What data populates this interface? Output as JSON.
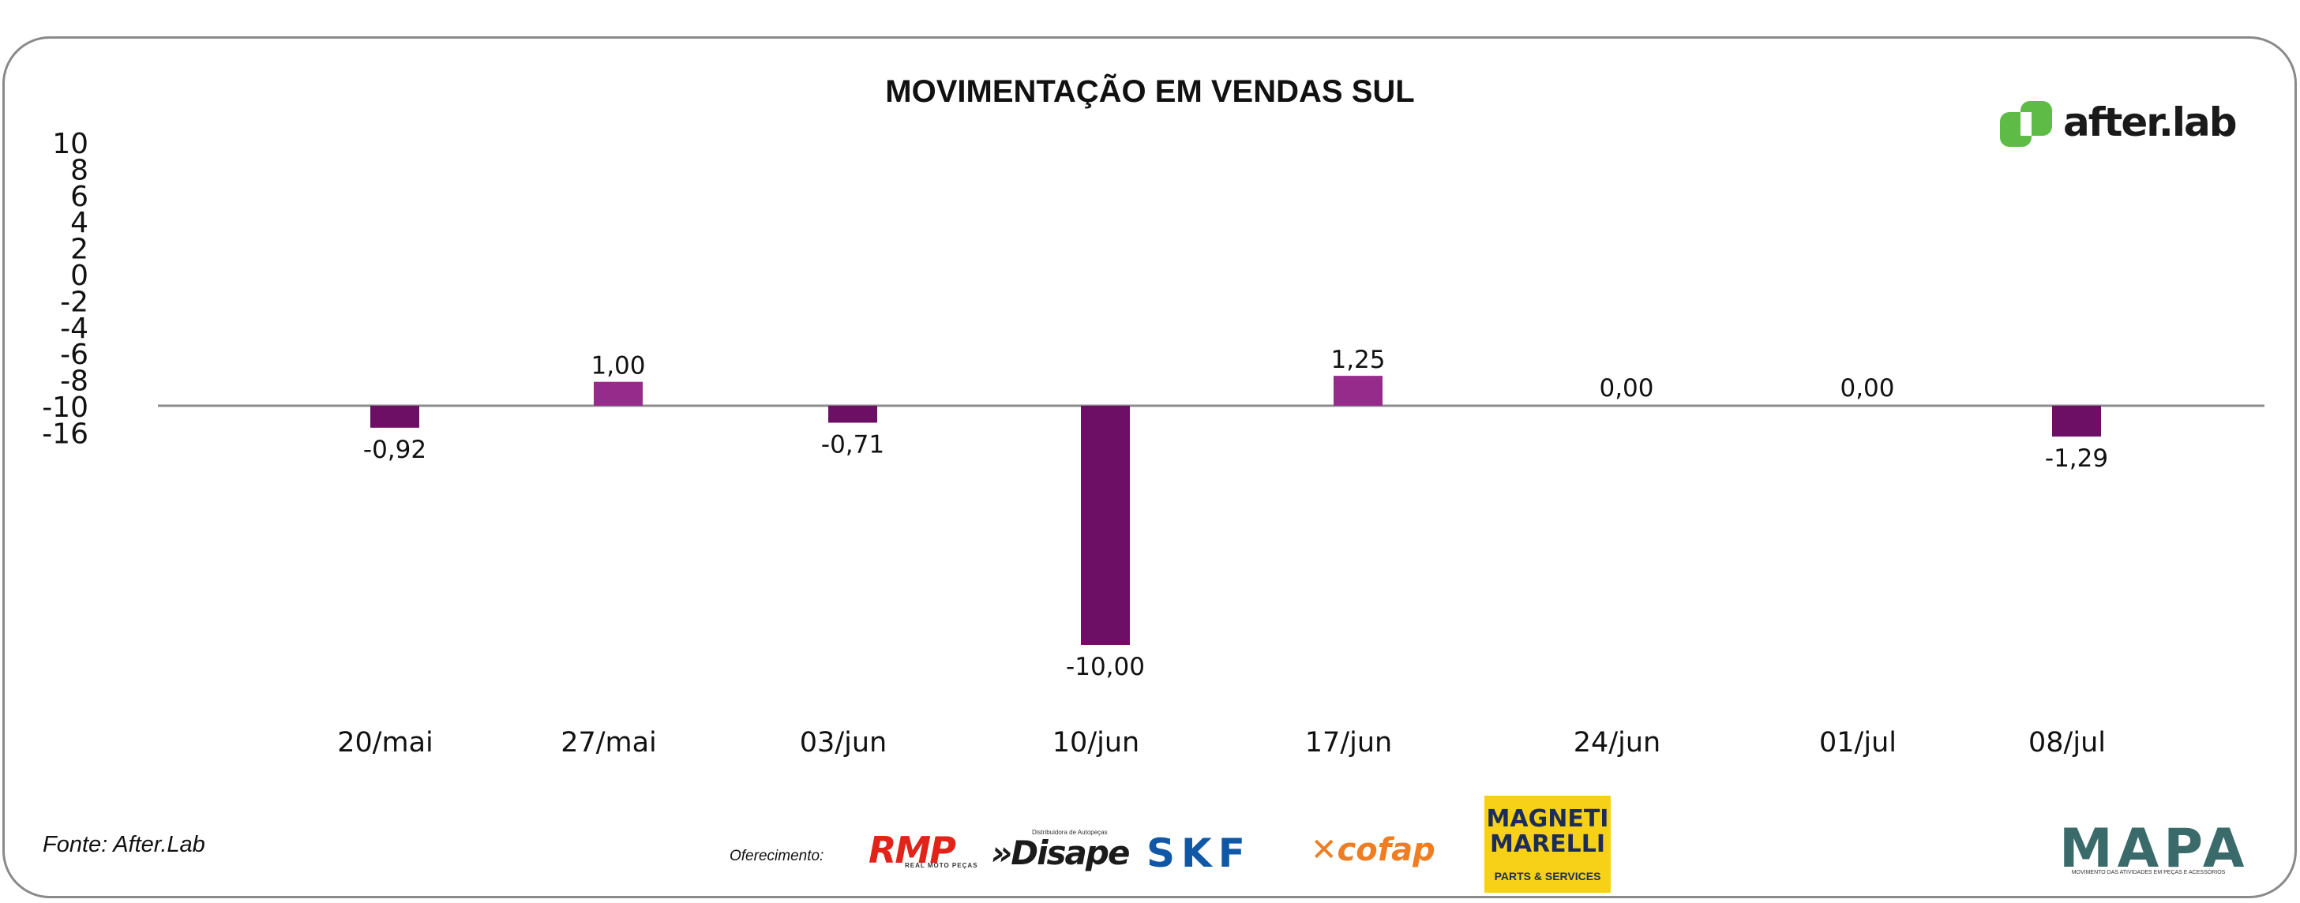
{
  "chart_data": {
    "type": "bar",
    "title": "MOVIMENTAÇÃO EM VENDAS SUL",
    "categories": [
      "20/mai",
      "27/mai",
      "03/jun",
      "10/jun",
      "17/jun",
      "24/jun",
      "01/jul",
      "08/jul"
    ],
    "values": [
      -0.92,
      1.0,
      -0.71,
      -10.0,
      1.25,
      0.0,
      0.0,
      -1.29
    ],
    "value_labels": [
      "-0,92",
      "1,00",
      "-0,71",
      "-10,00",
      "1,25",
      "0,00",
      "0,00",
      "-1,29"
    ],
    "y_ticks": [
      "10",
      "8",
      "6",
      "4",
      "2",
      "0",
      "-2",
      "-4",
      "-6",
      "-8",
      "-10",
      "-16"
    ],
    "ylim": [
      -16,
      10
    ],
    "xlabel": "",
    "ylabel": "",
    "grid": false,
    "legend": "none",
    "colors": {
      "bar": "#6e0f66",
      "bar_positive": "#962b8c",
      "zero_line": "#8c8c8c"
    }
  },
  "brand": {
    "name": "after.lab",
    "icon": "afterlab-logo-icon",
    "icon_color": "#5dbb46"
  },
  "source": "Fonte: After.Lab",
  "sponsor_label": "Oferecimento:",
  "sponsors": {
    "rmp": {
      "name": "RMP",
      "tagline": "REAL MOTO PEÇAS",
      "color": "#e2231a"
    },
    "disape": {
      "name": "»Disape",
      "tagline": "Distribuidora de Autopeças"
    },
    "skf": {
      "name": "SKF",
      "color": "#0f58a8"
    },
    "cofap": {
      "name": "✕cofap",
      "color": "#ef7d22"
    },
    "magneti_marelli": {
      "name": "MAGNETI\nMARELLI",
      "tagline": "PARTS & SERVICES",
      "bg_color": "#f7d117"
    },
    "mapa": {
      "name": "MAPA",
      "tagline": "MOVIMENTO DAS ATIVIDADES EM PEÇAS E ACESSÓRIOS"
    }
  }
}
